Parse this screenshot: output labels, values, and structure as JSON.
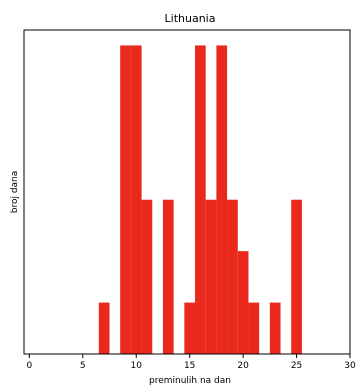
{
  "chart_data": {
    "type": "bar",
    "title": "Lithuania",
    "xlabel": "preminulih na dan",
    "ylabel": "broj dana",
    "xlim": [
      -0.5,
      30
    ],
    "ylim": [
      0,
      6.3
    ],
    "xticks": [
      0,
      5,
      10,
      15,
      20,
      25,
      30
    ],
    "bar_width": 1,
    "color": "#e8291c",
    "grid": false,
    "bars": [
      {
        "x": 7,
        "value": 1
      },
      {
        "x": 9,
        "value": 6
      },
      {
        "x": 10,
        "value": 6
      },
      {
        "x": 11,
        "value": 3
      },
      {
        "x": 13,
        "value": 3
      },
      {
        "x": 15,
        "value": 1
      },
      {
        "x": 16,
        "value": 6
      },
      {
        "x": 17,
        "value": 3
      },
      {
        "x": 18,
        "value": 6
      },
      {
        "x": 19,
        "value": 3
      },
      {
        "x": 20,
        "value": 2
      },
      {
        "x": 21,
        "value": 1
      },
      {
        "x": 23,
        "value": 1
      },
      {
        "x": 25,
        "value": 3
      }
    ]
  }
}
